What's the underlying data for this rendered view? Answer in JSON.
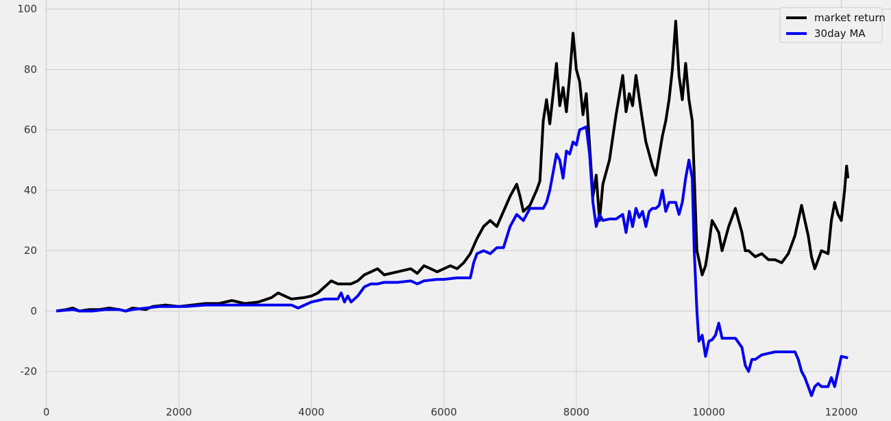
{
  "chart_data": {
    "type": "line",
    "title": "",
    "xlabel": "",
    "ylabel": "",
    "xlim": [
      -700,
      12750
    ],
    "ylim": [
      -33,
      103
    ],
    "xticks": [
      0,
      2000,
      4000,
      6000,
      8000,
      10000,
      12000
    ],
    "yticks": [
      -20,
      0,
      20,
      40,
      60,
      80,
      100
    ],
    "grid": true,
    "legend": "top-right",
    "background": "#f0f0f0",
    "grid_color": "#cbcbcb",
    "series": [
      {
        "name": "market return",
        "color": "#000000",
        "points": [
          [
            150,
            0
          ],
          [
            300,
            0.5
          ],
          [
            400,
            1
          ],
          [
            500,
            0
          ],
          [
            650,
            0.5
          ],
          [
            800,
            0.5
          ],
          [
            950,
            1
          ],
          [
            1100,
            0.5
          ],
          [
            1200,
            0
          ],
          [
            1300,
            1
          ],
          [
            1500,
            0.5
          ],
          [
            1600,
            1.5
          ],
          [
            1800,
            2
          ],
          [
            2000,
            1.5
          ],
          [
            2200,
            2
          ],
          [
            2400,
            2.5
          ],
          [
            2600,
            2.5
          ],
          [
            2800,
            3.5
          ],
          [
            3000,
            2.5
          ],
          [
            3200,
            3
          ],
          [
            3400,
            4.5
          ],
          [
            3500,
            6
          ],
          [
            3600,
            5
          ],
          [
            3700,
            4
          ],
          [
            3900,
            4.5
          ],
          [
            4000,
            5
          ],
          [
            4100,
            6
          ],
          [
            4200,
            8
          ],
          [
            4300,
            10
          ],
          [
            4400,
            9
          ],
          [
            4600,
            9
          ],
          [
            4700,
            10
          ],
          [
            4800,
            12
          ],
          [
            4900,
            13
          ],
          [
            5000,
            14
          ],
          [
            5100,
            12
          ],
          [
            5300,
            13
          ],
          [
            5500,
            14
          ],
          [
            5600,
            12.5
          ],
          [
            5700,
            15
          ],
          [
            5800,
            14
          ],
          [
            5900,
            13
          ],
          [
            6000,
            14
          ],
          [
            6100,
            15
          ],
          [
            6200,
            14
          ],
          [
            6300,
            16
          ],
          [
            6400,
            19
          ],
          [
            6500,
            24
          ],
          [
            6600,
            28
          ],
          [
            6700,
            30
          ],
          [
            6800,
            28
          ],
          [
            6900,
            33
          ],
          [
            7000,
            38
          ],
          [
            7100,
            42
          ],
          [
            7150,
            38
          ],
          [
            7200,
            33
          ],
          [
            7300,
            35
          ],
          [
            7400,
            40
          ],
          [
            7450,
            43
          ],
          [
            7500,
            63
          ],
          [
            7550,
            70
          ],
          [
            7600,
            62
          ],
          [
            7650,
            72
          ],
          [
            7700,
            82
          ],
          [
            7750,
            68
          ],
          [
            7800,
            74
          ],
          [
            7850,
            66
          ],
          [
            7900,
            78
          ],
          [
            7950,
            92
          ],
          [
            8000,
            80
          ],
          [
            8050,
            76
          ],
          [
            8100,
            65
          ],
          [
            8150,
            72
          ],
          [
            8200,
            55
          ],
          [
            8250,
            38
          ],
          [
            8300,
            45
          ],
          [
            8350,
            30
          ],
          [
            8400,
            42
          ],
          [
            8500,
            50
          ],
          [
            8600,
            65
          ],
          [
            8700,
            78
          ],
          [
            8750,
            66
          ],
          [
            8800,
            72
          ],
          [
            8850,
            68
          ],
          [
            8900,
            78
          ],
          [
            9000,
            63
          ],
          [
            9050,
            56
          ],
          [
            9100,
            52
          ],
          [
            9150,
            48
          ],
          [
            9200,
            45
          ],
          [
            9300,
            58
          ],
          [
            9350,
            63
          ],
          [
            9400,
            70
          ],
          [
            9450,
            80
          ],
          [
            9500,
            96
          ],
          [
            9550,
            78
          ],
          [
            9600,
            70
          ],
          [
            9650,
            82
          ],
          [
            9700,
            70
          ],
          [
            9750,
            63
          ],
          [
            9780,
            45
          ],
          [
            9820,
            20
          ],
          [
            9900,
            12
          ],
          [
            9950,
            15
          ],
          [
            10000,
            22
          ],
          [
            10050,
            30
          ],
          [
            10100,
            28
          ],
          [
            10150,
            26
          ],
          [
            10200,
            20
          ],
          [
            10300,
            28
          ],
          [
            10400,
            34
          ],
          [
            10450,
            30
          ],
          [
            10500,
            26
          ],
          [
            10550,
            20
          ],
          [
            10600,
            20
          ],
          [
            10700,
            18
          ],
          [
            10800,
            19
          ],
          [
            10900,
            17
          ],
          [
            11000,
            17
          ],
          [
            11100,
            16
          ],
          [
            11200,
            19
          ],
          [
            11300,
            25
          ],
          [
            11400,
            35
          ],
          [
            11450,
            30
          ],
          [
            11500,
            25
          ],
          [
            11550,
            18
          ],
          [
            11600,
            14
          ],
          [
            11650,
            17
          ],
          [
            11700,
            20
          ],
          [
            11800,
            19
          ],
          [
            11850,
            30
          ],
          [
            11900,
            36
          ],
          [
            11950,
            32
          ],
          [
            12000,
            30
          ],
          [
            12050,
            40
          ],
          [
            12080,
            48
          ],
          [
            12100,
            44
          ]
        ]
      },
      {
        "name": "30day MA",
        "color": "#0000ee",
        "points": [
          [
            150,
            0
          ],
          [
            400,
            0.5
          ],
          [
            500,
            0
          ],
          [
            700,
            0
          ],
          [
            900,
            0.5
          ],
          [
            1100,
            0.5
          ],
          [
            1200,
            0
          ],
          [
            1300,
            0.5
          ],
          [
            1500,
            1
          ],
          [
            1700,
            1.5
          ],
          [
            1900,
            1.5
          ],
          [
            2100,
            1.5
          ],
          [
            2400,
            2
          ],
          [
            2700,
            2
          ],
          [
            3000,
            2
          ],
          [
            3500,
            2
          ],
          [
            3700,
            2
          ],
          [
            3800,
            1
          ],
          [
            3900,
            2
          ],
          [
            4000,
            3
          ],
          [
            4100,
            3.5
          ],
          [
            4200,
            4
          ],
          [
            4400,
            4
          ],
          [
            4450,
            6
          ],
          [
            4500,
            3
          ],
          [
            4550,
            5
          ],
          [
            4600,
            3
          ],
          [
            4700,
            5
          ],
          [
            4800,
            8
          ],
          [
            4900,
            9
          ],
          [
            5000,
            9
          ],
          [
            5100,
            9.5
          ],
          [
            5300,
            9.5
          ],
          [
            5500,
            10
          ],
          [
            5600,
            9
          ],
          [
            5700,
            10
          ],
          [
            5900,
            10.5
          ],
          [
            6000,
            10.5
          ],
          [
            6200,
            11
          ],
          [
            6400,
            11
          ],
          [
            6450,
            16
          ],
          [
            6500,
            19
          ],
          [
            6600,
            20
          ],
          [
            6700,
            19
          ],
          [
            6800,
            21
          ],
          [
            6900,
            21
          ],
          [
            7000,
            28
          ],
          [
            7100,
            32
          ],
          [
            7200,
            30
          ],
          [
            7300,
            34
          ],
          [
            7500,
            34
          ],
          [
            7550,
            36
          ],
          [
            7600,
            40
          ],
          [
            7650,
            46
          ],
          [
            7700,
            52
          ],
          [
            7750,
            50
          ],
          [
            7800,
            44
          ],
          [
            7850,
            53
          ],
          [
            7900,
            52
          ],
          [
            7950,
            56
          ],
          [
            8000,
            55
          ],
          [
            8050,
            60
          ],
          [
            8150,
            61
          ],
          [
            8200,
            52
          ],
          [
            8250,
            36
          ],
          [
            8300,
            28
          ],
          [
            8350,
            32
          ],
          [
            8400,
            30
          ],
          [
            8500,
            30.5
          ],
          [
            8600,
            30.5
          ],
          [
            8700,
            32
          ],
          [
            8750,
            26
          ],
          [
            8800,
            33
          ],
          [
            8850,
            28
          ],
          [
            8900,
            34
          ],
          [
            8950,
            31
          ],
          [
            9000,
            33
          ],
          [
            9050,
            28
          ],
          [
            9100,
            33
          ],
          [
            9150,
            34
          ],
          [
            9200,
            34
          ],
          [
            9250,
            35
          ],
          [
            9300,
            40
          ],
          [
            9350,
            33
          ],
          [
            9400,
            36
          ],
          [
            9500,
            36
          ],
          [
            9550,
            32
          ],
          [
            9600,
            36
          ],
          [
            9650,
            44
          ],
          [
            9700,
            50
          ],
          [
            9750,
            44
          ],
          [
            9780,
            20
          ],
          [
            9820,
            0
          ],
          [
            9850,
            -10
          ],
          [
            9900,
            -8
          ],
          [
            9950,
            -15
          ],
          [
            10000,
            -10
          ],
          [
            10050,
            -9.5
          ],
          [
            10100,
            -8
          ],
          [
            10150,
            -4
          ],
          [
            10200,
            -9
          ],
          [
            10300,
            -9
          ],
          [
            10400,
            -9
          ],
          [
            10500,
            -12
          ],
          [
            10550,
            -18
          ],
          [
            10600,
            -20
          ],
          [
            10650,
            -16
          ],
          [
            10700,
            -16
          ],
          [
            10800,
            -14.5
          ],
          [
            10900,
            -14
          ],
          [
            11000,
            -13.5
          ],
          [
            11100,
            -13.5
          ],
          [
            11300,
            -13.5
          ],
          [
            11350,
            -16
          ],
          [
            11400,
            -20
          ],
          [
            11450,
            -22
          ],
          [
            11500,
            -25
          ],
          [
            11550,
            -28
          ],
          [
            11600,
            -25
          ],
          [
            11650,
            -24
          ],
          [
            11700,
            -25
          ],
          [
            11800,
            -25
          ],
          [
            11850,
            -22
          ],
          [
            11900,
            -25
          ],
          [
            11950,
            -20
          ],
          [
            12000,
            -15
          ],
          [
            12100,
            -15.5
          ]
        ]
      }
    ]
  }
}
